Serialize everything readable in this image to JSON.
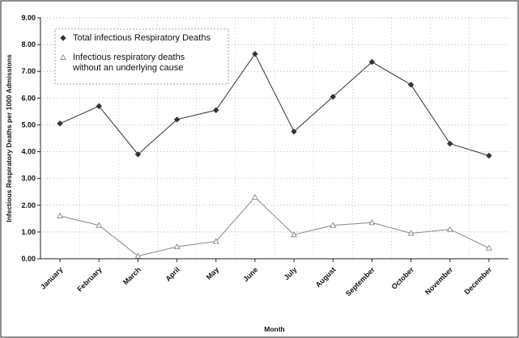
{
  "chart_data": {
    "type": "line",
    "title": "",
    "xlabel": "Month",
    "ylabel": "Infectious Respiratory Deaths per 1000 Admissions",
    "categories": [
      "January",
      "February",
      "March",
      "April",
      "May",
      "June",
      "July",
      "August",
      "September",
      "October",
      "November",
      "December"
    ],
    "ylim": [
      0,
      9
    ],
    "yticks": [
      "0.00",
      "1.00",
      "2.00",
      "3.00",
      "4.00",
      "5.00",
      "6.00",
      "7.00",
      "8.00",
      "9.00"
    ],
    "grid": true,
    "legend_position": "top-left",
    "series": [
      {
        "name": "Total infectious Respiratory Deaths",
        "marker": "diamond",
        "color": "#333333",
        "values": [
          5.05,
          5.7,
          3.9,
          5.2,
          5.55,
          7.65,
          4.75,
          6.05,
          7.35,
          6.5,
          4.3,
          3.85
        ]
      },
      {
        "name": "Infectious respiratory deaths without an underlying cause",
        "legend_lines": [
          "Infectious respiratory deaths",
          "without an underlying cause"
        ],
        "marker": "triangle",
        "color": "#888888",
        "values": [
          1.6,
          1.25,
          0.1,
          0.45,
          0.65,
          2.3,
          0.9,
          1.25,
          1.35,
          0.95,
          1.1,
          0.4
        ]
      }
    ]
  }
}
